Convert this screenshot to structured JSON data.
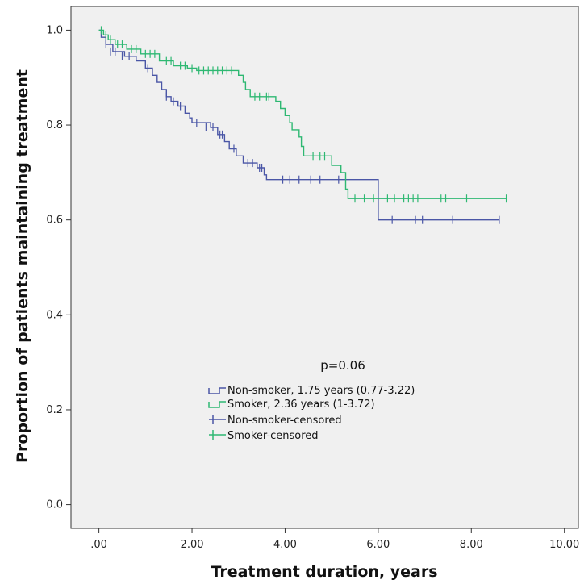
{
  "chart_data": {
    "type": "line",
    "subtype": "kaplan-meier step",
    "xlabel": "Treatment duration, years",
    "ylabel": "Proportion of patients maintaining treatment",
    "xlim": [
      -0.6,
      10.3
    ],
    "ylim": [
      -0.05,
      1.05
    ],
    "x_ticks": [
      0,
      2,
      4,
      6,
      8,
      10
    ],
    "x_tick_labels": [
      ".00",
      "2.00",
      "4.00",
      "6.00",
      "8.00",
      "10.00"
    ],
    "y_ticks": [
      0,
      0.2,
      0.4,
      0.6,
      0.8,
      1.0
    ],
    "y_tick_labels": [
      "0.0",
      "0.2",
      "0.4",
      "0.6",
      "0.8",
      "1.0"
    ],
    "grid": false,
    "background": "#f0f0f0",
    "annotation": "p=0.06",
    "legend_position": "lower-middle",
    "series": [
      {
        "name": "Non-smoker, 1.75 years (0.77-3.22)",
        "censored_name": "Non-smoker-censored",
        "color": "#4a56a6",
        "steps": [
          [
            0,
            1.0
          ],
          [
            0.05,
            0.985
          ],
          [
            0.15,
            0.97
          ],
          [
            0.3,
            0.955
          ],
          [
            0.55,
            0.945
          ],
          [
            0.8,
            0.935
          ],
          [
            1.0,
            0.92
          ],
          [
            1.15,
            0.905
          ],
          [
            1.25,
            0.89
          ],
          [
            1.35,
            0.875
          ],
          [
            1.45,
            0.86
          ],
          [
            1.55,
            0.85
          ],
          [
            1.7,
            0.84
          ],
          [
            1.85,
            0.825
          ],
          [
            1.95,
            0.815
          ],
          [
            2.0,
            0.805
          ],
          [
            2.4,
            0.795
          ],
          [
            2.55,
            0.78
          ],
          [
            2.7,
            0.765
          ],
          [
            2.8,
            0.75
          ],
          [
            2.95,
            0.735
          ],
          [
            3.1,
            0.72
          ],
          [
            3.4,
            0.71
          ],
          [
            3.55,
            0.695
          ],
          [
            3.6,
            0.685
          ],
          [
            6.0,
            0.6
          ],
          [
            8.6,
            0.6
          ]
        ],
        "censored": [
          [
            0.15,
            0.97
          ],
          [
            0.25,
            0.955
          ],
          [
            0.35,
            0.955
          ],
          [
            0.5,
            0.945
          ],
          [
            0.65,
            0.945
          ],
          [
            1.05,
            0.92
          ],
          [
            1.45,
            0.86
          ],
          [
            1.6,
            0.85
          ],
          [
            1.75,
            0.84
          ],
          [
            2.1,
            0.805
          ],
          [
            2.3,
            0.795
          ],
          [
            2.45,
            0.795
          ],
          [
            2.6,
            0.78
          ],
          [
            2.65,
            0.78
          ],
          [
            2.9,
            0.75
          ],
          [
            3.2,
            0.72
          ],
          [
            3.3,
            0.72
          ],
          [
            3.45,
            0.71
          ],
          [
            3.5,
            0.71
          ],
          [
            3.95,
            0.685
          ],
          [
            4.1,
            0.685
          ],
          [
            4.3,
            0.685
          ],
          [
            4.55,
            0.685
          ],
          [
            4.75,
            0.685
          ],
          [
            5.15,
            0.685
          ],
          [
            6.3,
            0.6
          ],
          [
            6.8,
            0.6
          ],
          [
            6.95,
            0.6
          ],
          [
            7.6,
            0.6
          ],
          [
            8.6,
            0.6
          ]
        ]
      },
      {
        "name": "Smoker, 2.36 years (1-3.72)",
        "censored_name": "Smoker-censored",
        "color": "#2eb872",
        "steps": [
          [
            0,
            1.0
          ],
          [
            0.1,
            0.99
          ],
          [
            0.2,
            0.98
          ],
          [
            0.35,
            0.97
          ],
          [
            0.6,
            0.96
          ],
          [
            0.9,
            0.95
          ],
          [
            1.3,
            0.935
          ],
          [
            1.6,
            0.925
          ],
          [
            1.9,
            0.92
          ],
          [
            2.1,
            0.915
          ],
          [
            3.0,
            0.905
          ],
          [
            3.1,
            0.89
          ],
          [
            3.15,
            0.875
          ],
          [
            3.25,
            0.86
          ],
          [
            3.8,
            0.85
          ],
          [
            3.9,
            0.835
          ],
          [
            4.0,
            0.82
          ],
          [
            4.1,
            0.805
          ],
          [
            4.15,
            0.79
          ],
          [
            4.3,
            0.775
          ],
          [
            4.35,
            0.755
          ],
          [
            4.4,
            0.735
          ],
          [
            5.0,
            0.715
          ],
          [
            5.2,
            0.7
          ],
          [
            5.3,
            0.665
          ],
          [
            5.35,
            0.645
          ],
          [
            8.75,
            0.645
          ]
        ],
        "censored": [
          [
            0.05,
            1.0
          ],
          [
            0.15,
            0.99
          ],
          [
            0.25,
            0.98
          ],
          [
            0.4,
            0.97
          ],
          [
            0.5,
            0.97
          ],
          [
            0.7,
            0.96
          ],
          [
            0.8,
            0.96
          ],
          [
            1.0,
            0.95
          ],
          [
            1.1,
            0.95
          ],
          [
            1.2,
            0.95
          ],
          [
            1.45,
            0.935
          ],
          [
            1.55,
            0.935
          ],
          [
            1.75,
            0.925
          ],
          [
            1.85,
            0.925
          ],
          [
            2.0,
            0.92
          ],
          [
            2.15,
            0.915
          ],
          [
            2.25,
            0.915
          ],
          [
            2.35,
            0.915
          ],
          [
            2.45,
            0.915
          ],
          [
            2.55,
            0.915
          ],
          [
            2.65,
            0.915
          ],
          [
            2.75,
            0.915
          ],
          [
            2.85,
            0.915
          ],
          [
            3.35,
            0.86
          ],
          [
            3.45,
            0.86
          ],
          [
            3.6,
            0.86
          ],
          [
            3.65,
            0.86
          ],
          [
            4.6,
            0.735
          ],
          [
            4.75,
            0.735
          ],
          [
            4.85,
            0.735
          ],
          [
            5.5,
            0.645
          ],
          [
            5.7,
            0.645
          ],
          [
            5.9,
            0.645
          ],
          [
            6.2,
            0.645
          ],
          [
            6.35,
            0.645
          ],
          [
            6.55,
            0.645
          ],
          [
            6.65,
            0.645
          ],
          [
            6.75,
            0.645
          ],
          [
            6.85,
            0.645
          ],
          [
            7.35,
            0.645
          ],
          [
            7.45,
            0.645
          ],
          [
            7.9,
            0.645
          ],
          [
            8.75,
            0.645
          ]
        ]
      }
    ]
  }
}
